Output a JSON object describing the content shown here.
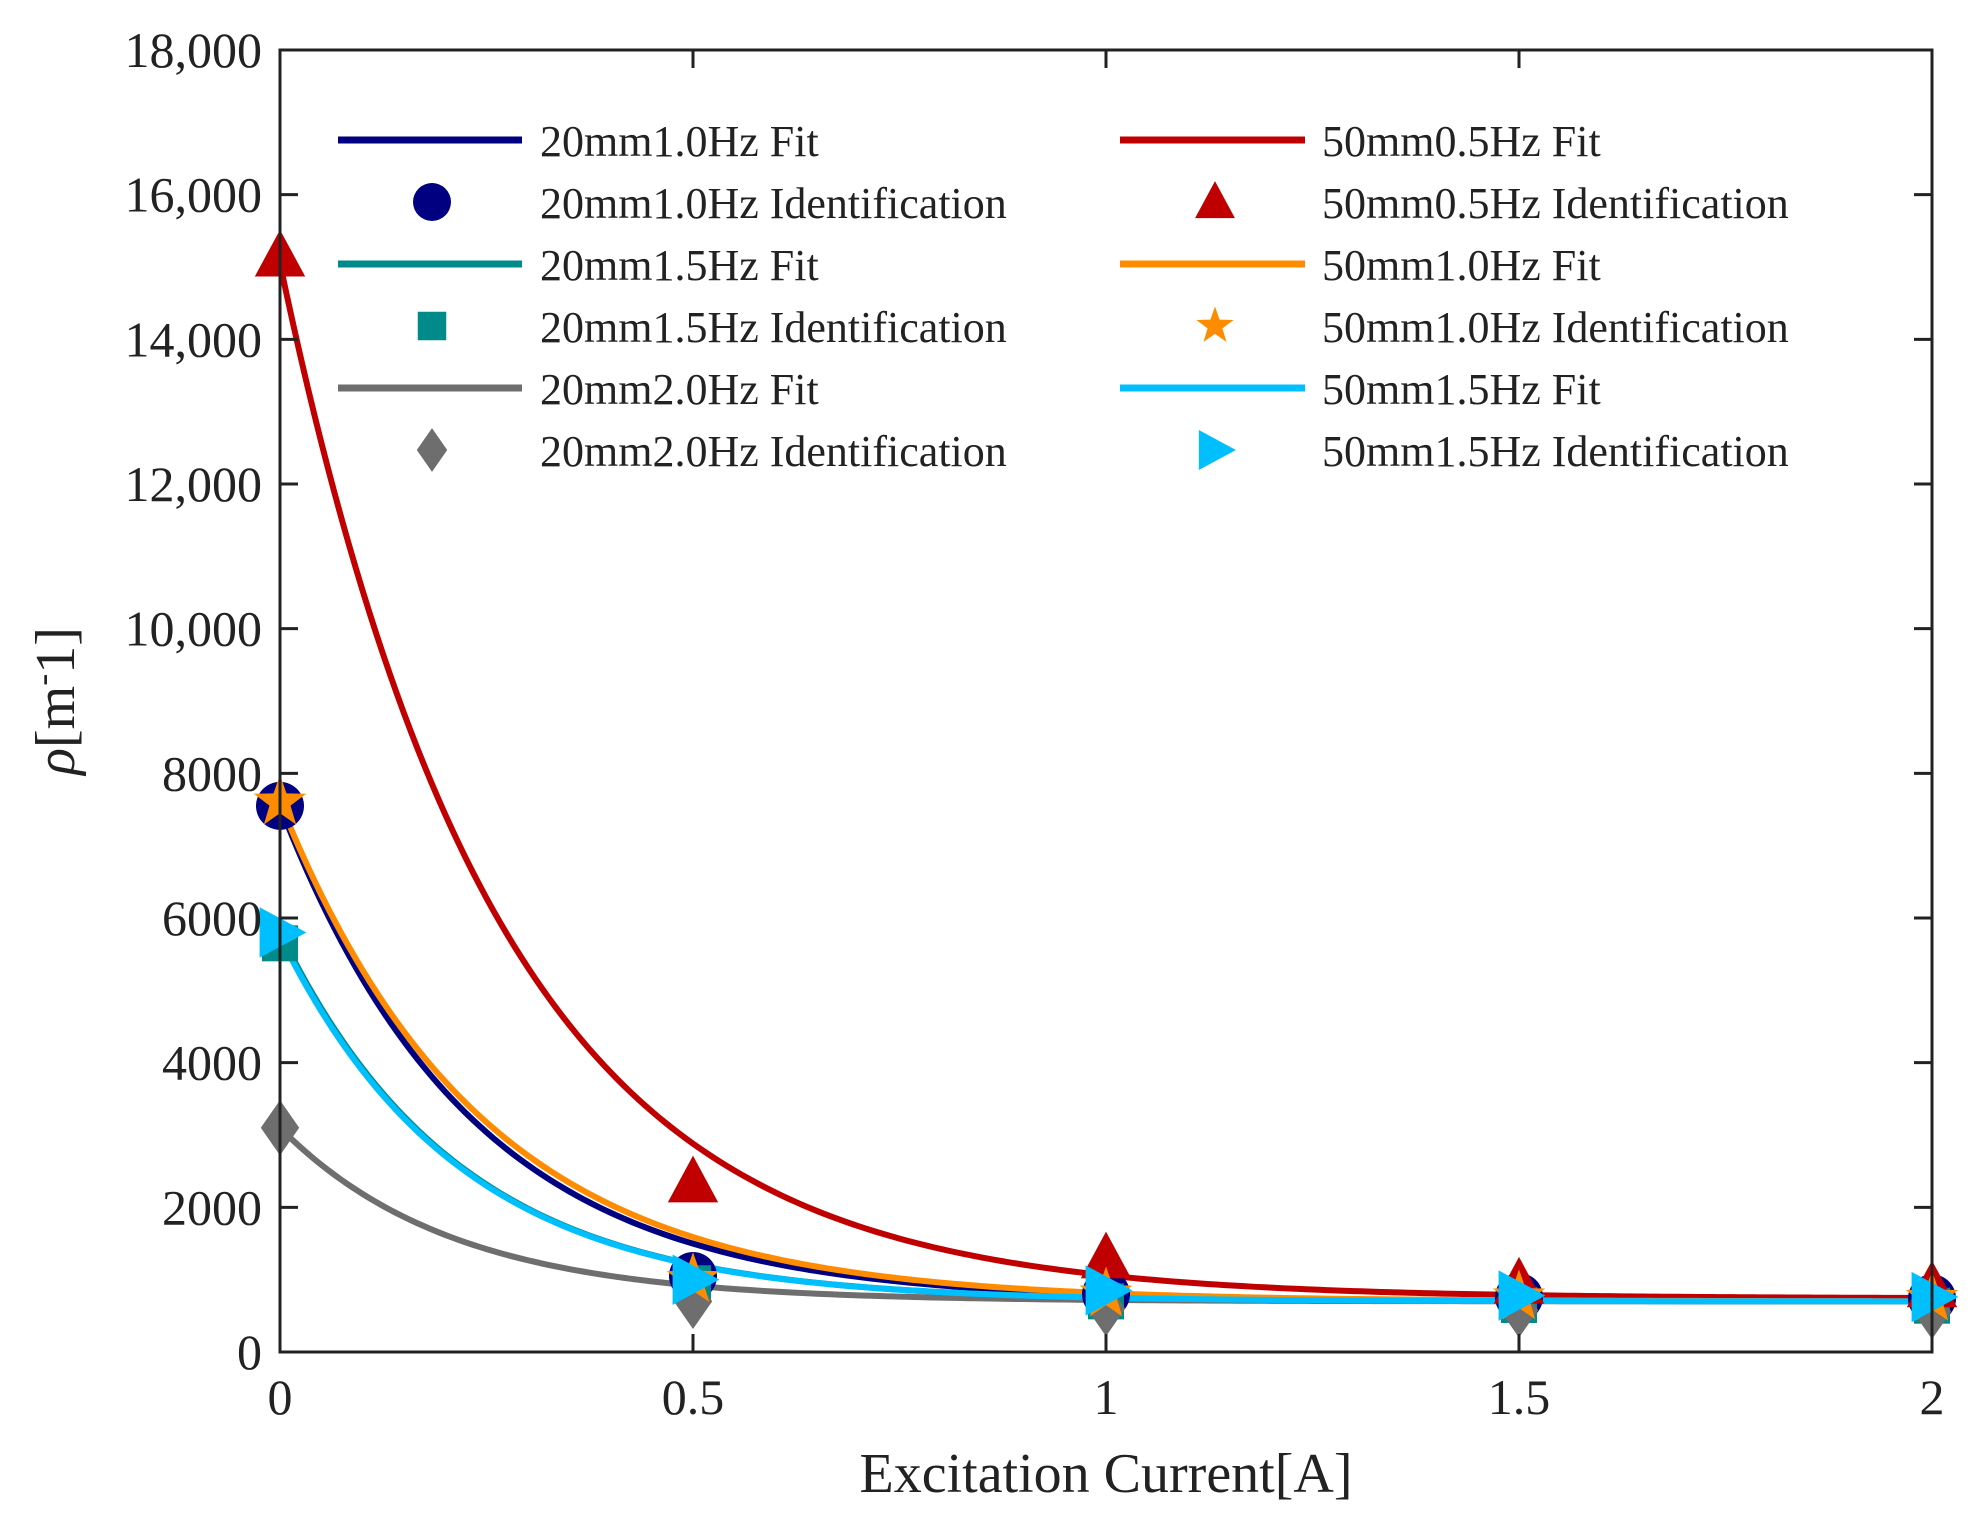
{
  "chart_data": {
    "type": "line",
    "title": "",
    "xlabel": "Excitation Current[A]",
    "ylabel_symbol": "ρ",
    "ylabel_unit": "[m",
    "ylabel_sup": "-",
    "ylabel_tail": "1]",
    "xlim": [
      0,
      2
    ],
    "ylim": [
      0,
      18000
    ],
    "x_ticks": [
      0,
      0.5,
      1,
      1.5,
      2
    ],
    "x_tick_labels": [
      "0",
      "0.5",
      "1",
      "1.5",
      "2"
    ],
    "y_ticks": [
      0,
      2000,
      4000,
      6000,
      8000,
      10000,
      12000,
      14000,
      16000,
      18000
    ],
    "y_tick_labels": [
      "0",
      "2000",
      "4000",
      "6000",
      "8000",
      "10,000",
      "12,000",
      "14,000",
      "16,000",
      "18,000"
    ],
    "grid": false,
    "legend_position": "top",
    "x": [
      0,
      0.5,
      1,
      1.5,
      2
    ],
    "series": [
      {
        "name": "20mm1.0Hz Fit",
        "kind": "fit",
        "color": "#000080",
        "fit": {
          "c": 700,
          "a": 6850,
          "k": 4.3
        }
      },
      {
        "name": "20mm1.0Hz Identification",
        "kind": "points",
        "color": "#000080",
        "marker": "circle",
        "values": [
          7550,
          1050,
          800,
          760,
          740
        ]
      },
      {
        "name": "20mm1.5Hz Fit",
        "kind": "fit",
        "color": "#008B8B",
        "fit": {
          "c": 700,
          "a": 5100,
          "k": 4.6
        }
      },
      {
        "name": "20mm1.5Hz Identification",
        "kind": "points",
        "color": "#008B8B",
        "marker": "square",
        "values": [
          5650,
          950,
          700,
          650,
          640
        ]
      },
      {
        "name": "20mm2.0Hz Fit",
        "kind": "fit",
        "color": "#6E6E6E",
        "fit": {
          "c": 700,
          "a": 2400,
          "k": 4.8
        }
      },
      {
        "name": "20mm2.0Hz Identification",
        "kind": "points",
        "color": "#6E6E6E",
        "marker": "diamond",
        "values": [
          3100,
          700,
          600,
          580,
          560
        ]
      },
      {
        "name": "50mm0.5Hz Fit",
        "kind": "fit",
        "color": "#C00000",
        "fit": {
          "c": 740,
          "a": 14310,
          "k": 3.8
        }
      },
      {
        "name": "50mm0.5Hz Identification",
        "kind": "points",
        "color": "#C00000",
        "marker": "triangle-up",
        "values": [
          15150,
          2350,
          1300,
          950,
          900
        ]
      },
      {
        "name": "50mm1.0Hz Fit",
        "kind": "fit",
        "color": "#FF8C00",
        "fit": {
          "c": 700,
          "a": 6900,
          "k": 4.1
        }
      },
      {
        "name": "50mm1.0Hz Identification",
        "kind": "points",
        "color": "#FF8C00",
        "marker": "star",
        "values": [
          7600,
          1000,
          800,
          760,
          740
        ]
      },
      {
        "name": "50mm1.5Hz Fit",
        "kind": "fit",
        "color": "#00BFFF",
        "fit": {
          "c": 700,
          "a": 5050,
          "k": 4.6
        }
      },
      {
        "name": "50mm1.5Hz Identification",
        "kind": "points",
        "color": "#00BFFF",
        "marker": "triangle-right",
        "values": [
          5800,
          1000,
          850,
          780,
          760
        ]
      }
    ]
  }
}
